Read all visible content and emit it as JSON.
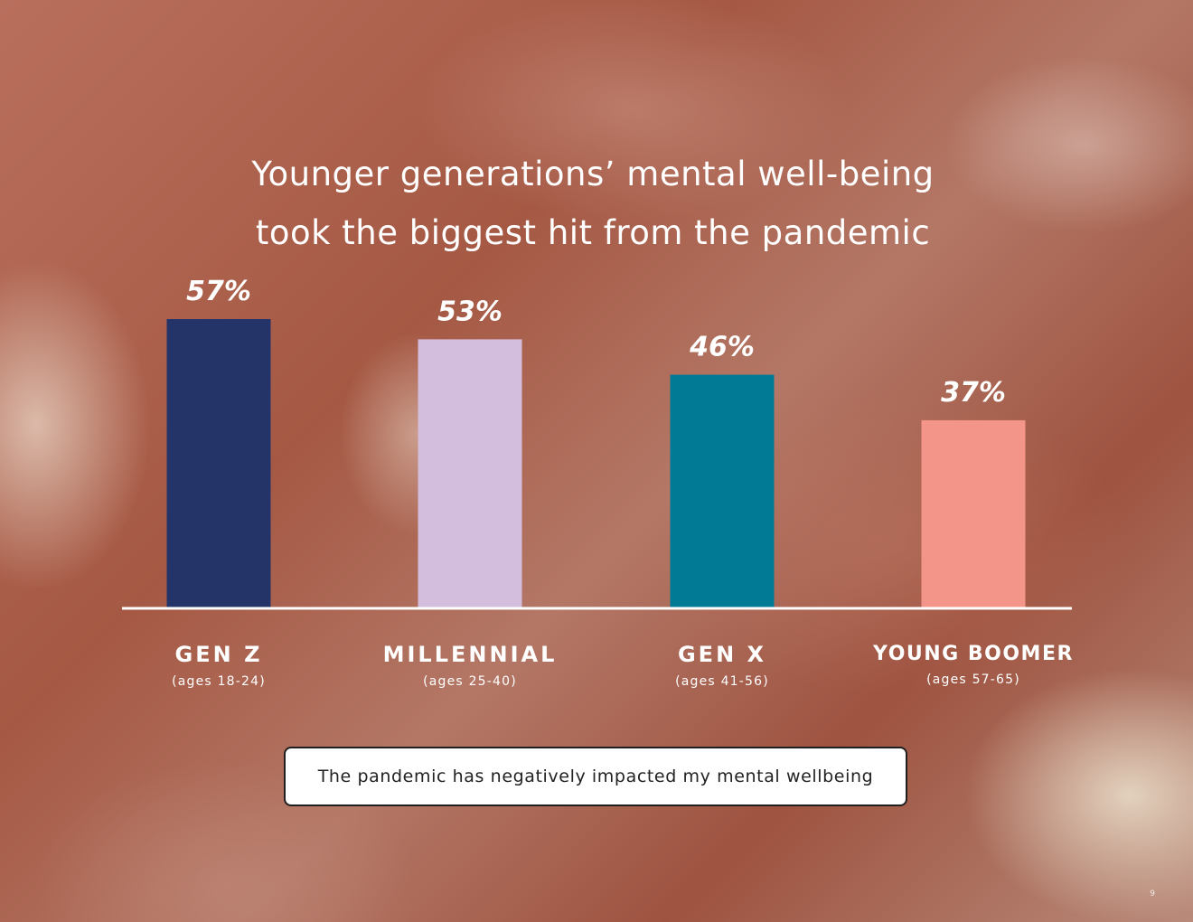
{
  "title_lines": [
    "Younger generations’ mental well-being",
    "took the biggest hit from the pandemic"
  ],
  "legend": "The pandemic has negatively impacted my mental wellbeing",
  "page_number": "9",
  "chart_data": {
    "type": "bar",
    "title": "Younger generations’ mental well-being took the biggest hit from the pandemic",
    "categories": [
      "GEN Z",
      "MILLENNIAL",
      "GEN X",
      "YOUNG BOOMER"
    ],
    "sublabels": [
      "(ages 18-24)",
      "(ages 25-40)",
      "(ages 41-56)",
      "(ages 57-65)"
    ],
    "value_labels": [
      "57%",
      "53%",
      "46%",
      "37%"
    ],
    "values": [
      57,
      53,
      46,
      37
    ],
    "unit": "%",
    "colors": [
      "#253468",
      "#d3bedd",
      "#007a95",
      "#f4958a"
    ],
    "series": [
      {
        "name": "The pandemic has negatively impacted my mental wellbeing",
        "values": [
          57,
          53,
          46,
          37
        ]
      }
    ],
    "ylim": [
      0,
      57
    ],
    "grid": false,
    "legend_position": "bottom-center"
  }
}
